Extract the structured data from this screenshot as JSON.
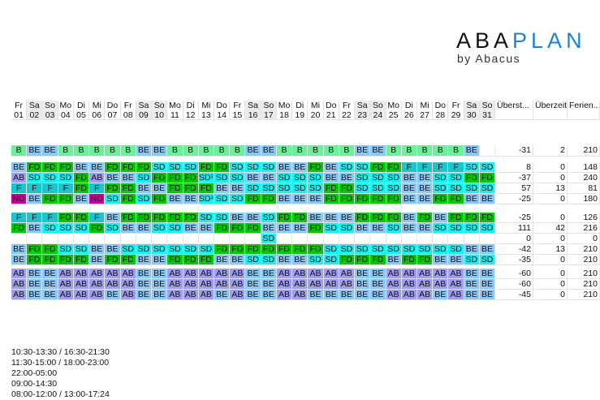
{
  "logo": {
    "main_dark": "ABA",
    "main_blue": "PLAN",
    "sub": "by Abacus"
  },
  "header": {
    "days": [
      [
        "Fr",
        "01"
      ],
      [
        "Sa",
        "02"
      ],
      [
        "So",
        "03"
      ],
      [
        "Mo",
        "04"
      ],
      [
        "Di",
        "05"
      ],
      [
        "Mi",
        "06"
      ],
      [
        "Do",
        "07"
      ],
      [
        "Fr",
        "08"
      ],
      [
        "Sa",
        "09"
      ],
      [
        "So",
        "10"
      ],
      [
        "Mo",
        "11"
      ],
      [
        "Di",
        "12"
      ],
      [
        "Mi",
        "13"
      ],
      [
        "Do",
        "14"
      ],
      [
        "Fr",
        "15"
      ],
      [
        "Sa",
        "16"
      ],
      [
        "So",
        "17"
      ],
      [
        "Mo",
        "18"
      ],
      [
        "Di",
        "19"
      ],
      [
        "Mi",
        "20"
      ],
      [
        "Do",
        "21"
      ],
      [
        "Fr",
        "22"
      ],
      [
        "Sa",
        "23"
      ],
      [
        "So",
        "24"
      ],
      [
        "Mo",
        "25"
      ],
      [
        "Di",
        "26"
      ],
      [
        "Mi",
        "27"
      ],
      [
        "Do",
        "28"
      ],
      [
        "Fr",
        "29"
      ],
      [
        "Sa",
        "30"
      ],
      [
        "So",
        "31"
      ]
    ],
    "summary": [
      "Überst...",
      "Überzeit",
      "Ferien..."
    ]
  },
  "colors": {
    "B": "#6cf09a",
    "BE": "#8cc8f4",
    "FD": "#06c806",
    "SD": "#19f0f0",
    "F": "#1cc4cc",
    "AB": "#a09cf0",
    "ND": "#c8009c",
    "": "#ffffff"
  },
  "groups": [
    [
      {
        "cells": [
          "B",
          "BE",
          "BE",
          "B",
          "B",
          "B",
          "B",
          "B",
          "BE",
          "BE",
          "B",
          "B",
          "B",
          "B",
          "B",
          "BE",
          "BE",
          "B",
          "B",
          "B",
          "B",
          "B",
          "BE",
          "BE",
          "B",
          "B",
          "B",
          "B",
          "B",
          "BE",
          ""
        ],
        "values": [
          "-31",
          "2",
          "210"
        ]
      }
    ],
    [
      {
        "cells": [
          "BE",
          "FD",
          "FD",
          "FD",
          "BE",
          "BE",
          "FD",
          "FD",
          "FD",
          "SD",
          "SD",
          "SD",
          "FD",
          "FD",
          "SD",
          "SD",
          "SD",
          "BE",
          "BE",
          "FD",
          "BE",
          "SD",
          "SD",
          "FD",
          "FD",
          "F",
          "F",
          "F",
          "F",
          "SD",
          "SD"
        ],
        "values": [
          "8",
          "0",
          "148"
        ]
      },
      {
        "cells": [
          "AB",
          "SD",
          "SD",
          "SD",
          "FD",
          "AB",
          "BE",
          "BE",
          "SD",
          "FD",
          "FD",
          "FD",
          "SD¹",
          "SD",
          "SD",
          "BE",
          "BE",
          "SD",
          "SD",
          "SD",
          "BE",
          "BE",
          "SD",
          "SD",
          "SD",
          "BE",
          "BE",
          "SD",
          "SD",
          "FD",
          "FD"
        ],
        "values": [
          "-37",
          "0",
          "240"
        ]
      },
      {
        "cells": [
          "F",
          "F",
          "F",
          "F",
          "FD",
          "F",
          "FD",
          "FD",
          "BE",
          "BE",
          "FD",
          "FD",
          "FD",
          "BE",
          "BE",
          "SD",
          "SD",
          "SD",
          "SD",
          "SD",
          "FD",
          "FD",
          "SD",
          "SD",
          "SD",
          "BE",
          "BE",
          "SD",
          "SD",
          "SD",
          "SD"
        ],
        "values": [
          "57",
          "13",
          "81"
        ]
      },
      {
        "cells": [
          "ND",
          "BE",
          "FD",
          "FD",
          "BE",
          "ND",
          "SD",
          "FD",
          "SD",
          "FD",
          "BE",
          "BE",
          "SD¹",
          "SD",
          "SD",
          "FD",
          "FD",
          "BE",
          "BE",
          "BE",
          "FD",
          "FD",
          "FD",
          "FD",
          "FD",
          "BE",
          "BE",
          "FD",
          "FD",
          "BE",
          "BE"
        ],
        "values": [
          "-25",
          "0",
          "180"
        ]
      }
    ],
    [
      {
        "cells": [
          "F",
          "F",
          "F",
          "FD",
          "FD",
          "F",
          "BE",
          "FD",
          "FD",
          "FD",
          "FD",
          "FD",
          "SD",
          "SD",
          "BE",
          "BE",
          "SD",
          "FD",
          "FD",
          "BE",
          "BE",
          "BE",
          "FD",
          "FD",
          "FD",
          "BE",
          "FD",
          "BE",
          "FD",
          "FD",
          "FD"
        ],
        "values": [
          "-25",
          "0",
          "126"
        ]
      },
      {
        "cells": [
          "FD",
          "BE",
          "SD",
          "SD",
          "SD",
          "FD",
          "SD",
          "BE",
          "BE",
          "SD",
          "SD",
          "BE",
          "BE",
          "FD",
          "FD",
          "FD",
          "BE",
          "BE",
          "BE",
          "FD",
          "SD",
          "SD",
          "BE",
          "BE",
          "SD",
          "BE",
          "BE",
          "SD",
          "SD",
          "SD",
          "SD"
        ],
        "values": [
          "111",
          "42",
          "216"
        ]
      },
      {
        "cells": [
          "",
          "",
          "",
          "",
          "",
          "",
          "",
          "",
          "",
          "",
          "",
          "",
          "",
          "",
          "",
          "",
          "SD",
          "",
          "",
          "",
          "",
          "",
          "",
          "",
          "",
          "",
          "",
          "",
          "",
          "",
          ""
        ],
        "values": [
          "0",
          "0",
          "0"
        ]
      },
      {
        "cells": [
          "BE",
          "FD",
          "FD",
          "SD",
          "SD",
          "BE",
          "BE",
          "SD",
          "SD",
          "SD",
          "SD",
          "SD",
          "SD",
          "FD",
          "FD",
          "FD",
          "FD",
          "FD",
          "FD",
          "FD",
          "SD",
          "SD",
          "SD",
          "SD",
          "SD",
          "SD",
          "SD",
          "SD",
          "SD",
          "BE",
          "BE"
        ],
        "values": [
          "-42",
          "13",
          "210"
        ]
      },
      {
        "cells": [
          "BE",
          "FD",
          "FD",
          "FD",
          "FD",
          "BE",
          "FD",
          "FD",
          "BE",
          "BE",
          "FD",
          "FD",
          "FD",
          "BE",
          "BE",
          "SD",
          "SD",
          "BE",
          "BE",
          "SD",
          "SD",
          "FD",
          "FD",
          "FD",
          "BE",
          "FD",
          "FD",
          "BE",
          "BE",
          "SD",
          "SD"
        ],
        "values": [
          "-35",
          "0",
          "210"
        ]
      }
    ],
    [
      {
        "cells": [
          "AB",
          "BE",
          "BE",
          "AB",
          "AB",
          "AB",
          "AB",
          "AB",
          "BE",
          "BE",
          "AB",
          "AB",
          "AB",
          "AB",
          "AB",
          "BE",
          "BE",
          "AB",
          "AB",
          "AB",
          "AB",
          "AB",
          "BE",
          "BE",
          "AB",
          "AB",
          "AB",
          "AB",
          "AB",
          "BE",
          "BE"
        ],
        "values": [
          "-60",
          "0",
          "210"
        ]
      },
      {
        "cells": [
          "AB",
          "BE",
          "BE",
          "AB",
          "AB",
          "AB",
          "AB",
          "AB",
          "BE",
          "BE",
          "AB",
          "AB",
          "AB",
          "AB",
          "AB",
          "BE",
          "BE",
          "AB",
          "AB",
          "AB",
          "AB",
          "AB",
          "BE",
          "BE",
          "AB",
          "AB",
          "AB",
          "AB",
          "AB",
          "BE",
          "BE"
        ],
        "values": [
          "-60",
          "0",
          "210"
        ]
      },
      {
        "cells": [
          "AB",
          "BE",
          "BE",
          "AB",
          "AB",
          "AB",
          "BE",
          "AB",
          "BE",
          "BE",
          "AB",
          "AB",
          "AB",
          "BE",
          "AB",
          "BE",
          "BE",
          "AB",
          "AB",
          "BE",
          "BE",
          "BE",
          "BE",
          "BE",
          "AB",
          "AB",
          "AB",
          "BE",
          "AB",
          "BE",
          "BE"
        ],
        "values": [
          "-45",
          "0",
          "210"
        ]
      }
    ]
  ],
  "shift_times": [
    "10:30-13:30 / 16:30-21:30",
    "11:30-15:00 / 18:00-23:00",
    "22:00-05:00",
    "09:00-14:30",
    "08:00-12:00 / 13:00-17:24"
  ]
}
